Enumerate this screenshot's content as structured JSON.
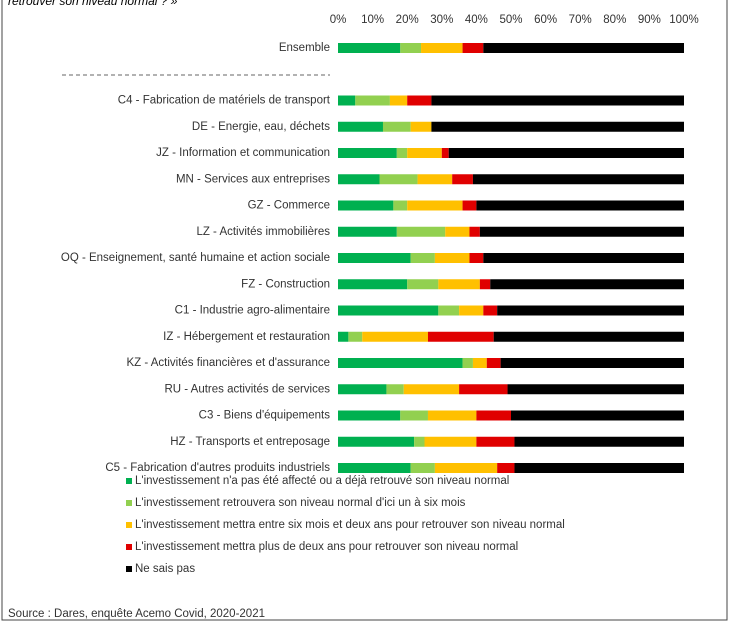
{
  "chart_data": {
    "type": "stacked-barh",
    "title": "retrouver son niveau normal ? »",
    "source": "Source : Dares, enquête Acemo Covid, 2020-2021",
    "categories": [
      "Ensemble",
      "C4 - Fabrication de matériels de transport",
      "DE - Energie, eau, déchets",
      "JZ - Information et communication",
      "MN - Services aux entreprises",
      "GZ - Commerce",
      "LZ - Activités immobilières",
      "OQ - Enseignement, santé humaine et action sociale",
      "FZ - Construction",
      "C1 - Industrie agro-alimentaire",
      "IZ - Hébergement et restauration",
      "KZ - Activités financières et d'assurance",
      "RU - Autres activités de services",
      "C3 - Biens d'équipements",
      "HZ - Transports et entreposage",
      "C5 - Fabrication d'autres produits industriels"
    ],
    "series": [
      {
        "name": "L'investissement n'a pas été affecté ou a déjà retrouvé son niveau normal",
        "color": "#00b050",
        "values": [
          18,
          5,
          13,
          17,
          12,
          16,
          17,
          21,
          20,
          29,
          3,
          36,
          14,
          18,
          22,
          21
        ]
      },
      {
        "name": "L'investissement retrouvera son niveau normal d'ici un à six mois",
        "color": "#92d050",
        "values": [
          6,
          10,
          8,
          3,
          11,
          4,
          14,
          7,
          9,
          6,
          4,
          3,
          5,
          8,
          3,
          7
        ]
      },
      {
        "name": "L'investissement mettra entre six mois et deux ans pour retrouver son niveau normal",
        "color": "#ffc000",
        "values": [
          12,
          5,
          6,
          10,
          10,
          16,
          7,
          10,
          12,
          7,
          19,
          4,
          16,
          14,
          15,
          18
        ]
      },
      {
        "name": "L'investissement mettra plus de deux ans pour retrouver son niveau normal",
        "color": "#e00000",
        "values": [
          6,
          7,
          0,
          2,
          6,
          4,
          3,
          4,
          3,
          4,
          19,
          4,
          14,
          10,
          11,
          5
        ]
      },
      {
        "name": "Ne sais pas",
        "color": "#000000",
        "values": [
          58,
          73,
          73,
          68,
          61,
          60,
          59,
          58,
          56,
          54,
          55,
          53,
          51,
          50,
          49,
          49
        ]
      }
    ],
    "xlim": [
      0,
      100
    ],
    "xticks": [
      {
        "value": 0,
        "label": "0%"
      },
      {
        "value": 10,
        "label": "10%"
      },
      {
        "value": 20,
        "label": "20%"
      },
      {
        "value": 30,
        "label": "30%"
      },
      {
        "value": 40,
        "label": "40%"
      },
      {
        "value": 50,
        "label": "50%"
      },
      {
        "value": 60,
        "label": "60%"
      },
      {
        "value": 70,
        "label": "70%"
      },
      {
        "value": 80,
        "label": "80%"
      },
      {
        "value": 90,
        "label": "90%"
      },
      {
        "value": 100,
        "label": "100%"
      }
    ]
  }
}
